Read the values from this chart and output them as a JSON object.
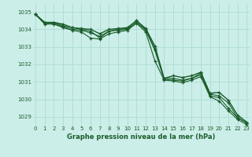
{
  "xlabel": "Graphe pression niveau de la mer (hPa)",
  "ylim": [
    1028.5,
    1035.5
  ],
  "xlim": [
    -0.3,
    23.3
  ],
  "yticks": [
    1029,
    1030,
    1031,
    1032,
    1033,
    1034,
    1035
  ],
  "xticks": [
    0,
    1,
    2,
    3,
    4,
    5,
    6,
    7,
    8,
    9,
    10,
    11,
    12,
    13,
    14,
    15,
    16,
    17,
    18,
    19,
    20,
    21,
    22,
    23
  ],
  "bg_color": "#cceee8",
  "grid_color": "#b0ddd6",
  "line_color": "#1a5c2a",
  "lines": [
    [
      1034.85,
      1034.4,
      1034.4,
      1034.3,
      1034.1,
      1034.05,
      1034.0,
      1033.75,
      1034.0,
      1034.05,
      1034.1,
      1034.5,
      1034.05,
      1033.05,
      1031.2,
      1031.35,
      1031.25,
      1031.35,
      1031.55,
      1030.35,
      1030.4,
      1029.95,
      1029.1,
      1028.7
    ],
    [
      1034.85,
      1034.4,
      1034.4,
      1034.2,
      1034.1,
      1034.0,
      1033.9,
      1033.5,
      1033.9,
      1034.0,
      1034.05,
      1034.5,
      1034.0,
      1032.9,
      1031.2,
      1031.2,
      1031.1,
      1031.2,
      1031.5,
      1030.3,
      1030.2,
      1029.8,
      1028.95,
      1028.65
    ],
    [
      1034.85,
      1034.35,
      1034.35,
      1034.15,
      1034.0,
      1033.95,
      1033.8,
      1033.6,
      1033.9,
      1033.95,
      1034.0,
      1034.4,
      1033.95,
      1032.8,
      1031.15,
      1031.1,
      1031.05,
      1031.2,
      1031.4,
      1030.2,
      1030.1,
      1029.5,
      1028.95,
      1028.65
    ],
    [
      1034.85,
      1034.3,
      1034.3,
      1034.1,
      1033.95,
      1033.85,
      1033.5,
      1033.45,
      1033.75,
      1033.85,
      1033.95,
      1034.35,
      1033.85,
      1032.2,
      1031.1,
      1031.05,
      1030.95,
      1031.1,
      1031.3,
      1030.15,
      1029.9,
      1029.35,
      1028.85,
      1028.55
    ]
  ]
}
